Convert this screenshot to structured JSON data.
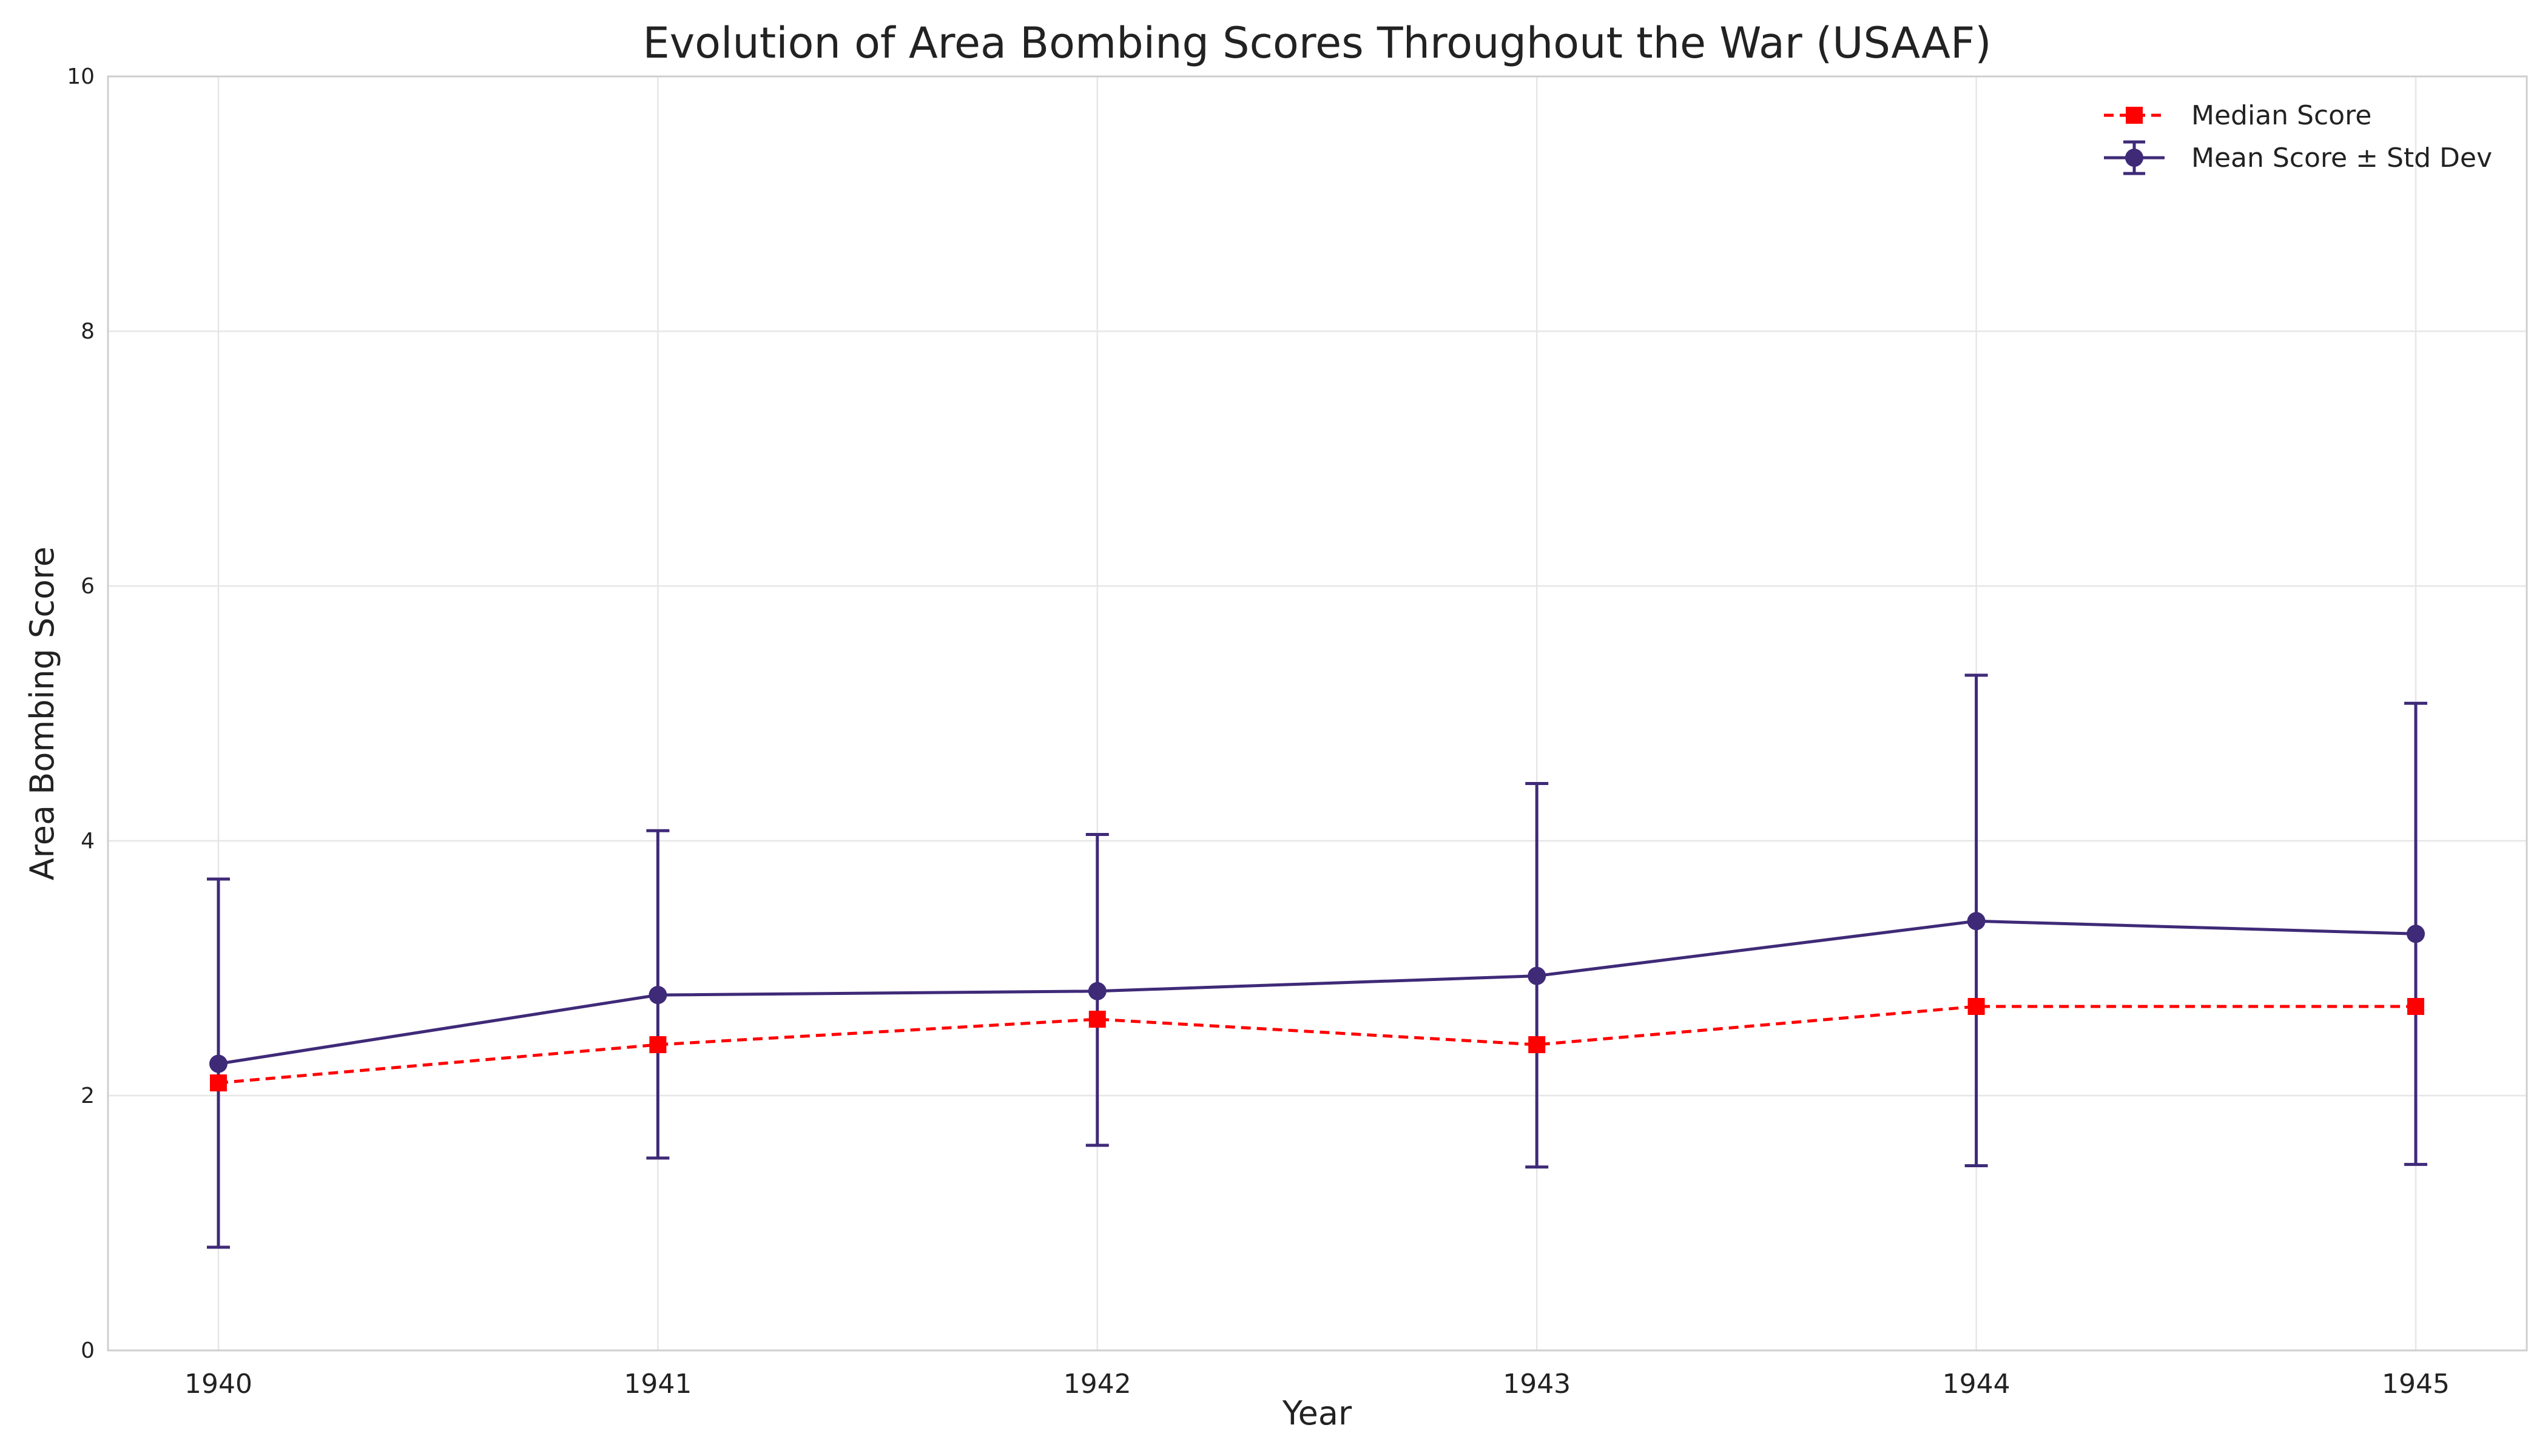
{
  "chart_data": {
    "type": "line",
    "title": "Evolution of Area Bombing Scores Throughout the War (USAAF)",
    "xlabel": "Year",
    "ylabel": "Area Bombing Score",
    "x": [
      "1940",
      "1941",
      "1942",
      "1943",
      "1944",
      "1945"
    ],
    "ylim": [
      0,
      10
    ],
    "yticks": [
      "0",
      "2",
      "4",
      "6",
      "8",
      "10"
    ],
    "grid": true,
    "legend_position": "top-right",
    "series": [
      {
        "name": "Median Score",
        "style": "dashed-square",
        "color": "#ff0000",
        "values": [
          2.1,
          2.4,
          2.6,
          2.4,
          2.7,
          2.7
        ]
      },
      {
        "name": "Mean Score ± Std Dev",
        "style": "solid-circle-errorbar",
        "color": "#3f2a78",
        "values": [
          2.25,
          2.79,
          2.82,
          2.94,
          3.37,
          3.27
        ],
        "error_low": [
          0.81,
          1.51,
          1.61,
          1.44,
          1.45,
          1.46
        ],
        "error_high": [
          3.7,
          4.08,
          4.05,
          4.45,
          5.3,
          5.08
        ]
      }
    ]
  }
}
